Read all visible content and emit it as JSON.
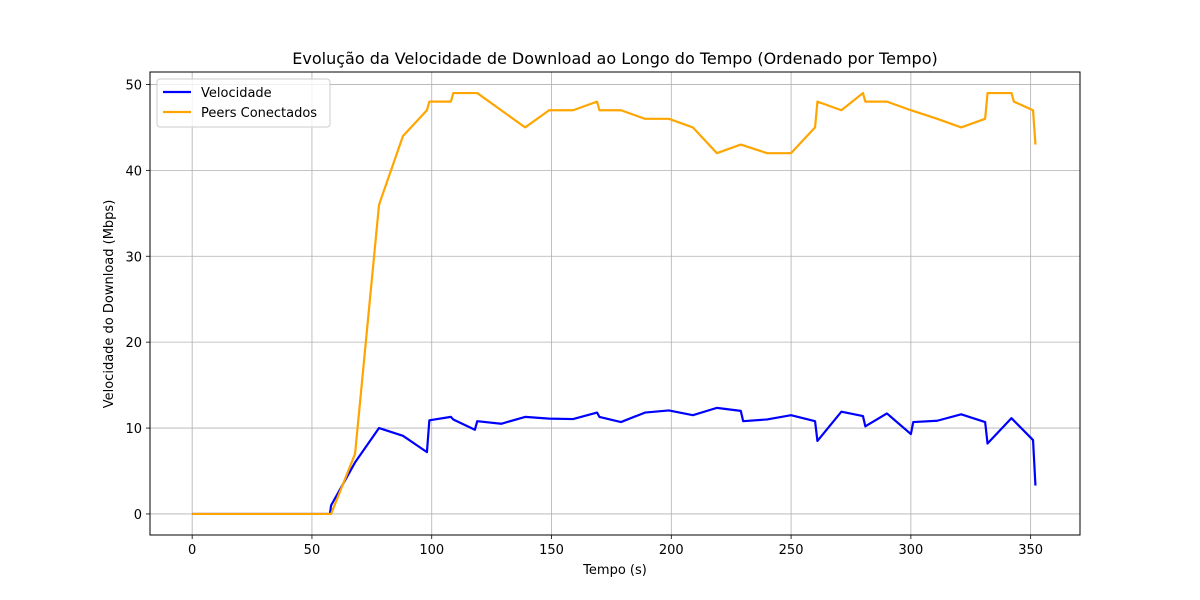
{
  "chart_data": {
    "type": "line",
    "title": "Evolução da Velocidade de Download ao Longo do Tempo (Ordenado por Tempo)",
    "xlabel": "Tempo (s)",
    "ylabel": "Velocidade do Download (Mbps)",
    "xlim": [
      -17.6,
      370.6
    ],
    "ylim": [
      -2.45,
      51.45
    ],
    "xticks": [
      0,
      50,
      100,
      150,
      200,
      250,
      300,
      350
    ],
    "yticks": [
      0,
      10,
      20,
      30,
      40,
      50
    ],
    "grid": true,
    "legend_position": "top-left",
    "series": [
      {
        "name": "Velocidade",
        "color": "#0000ff",
        "points": [
          [
            0,
            0
          ],
          [
            57.5,
            0
          ],
          [
            58,
            1.0
          ],
          [
            68,
            6.0
          ],
          [
            78,
            10.0
          ],
          [
            88,
            9.1
          ],
          [
            98,
            7.2
          ],
          [
            99,
            10.9
          ],
          [
            108,
            11.3
          ],
          [
            109,
            11.0
          ],
          [
            118,
            9.8
          ],
          [
            119,
            10.8
          ],
          [
            129,
            10.5
          ],
          [
            139,
            11.3
          ],
          [
            149,
            11.1
          ],
          [
            159,
            11.05
          ],
          [
            169,
            11.8
          ],
          [
            170,
            11.3
          ],
          [
            179,
            10.7
          ],
          [
            189,
            11.8
          ],
          [
            199,
            12.05
          ],
          [
            209,
            11.5
          ],
          [
            219,
            12.35
          ],
          [
            229,
            12.0
          ],
          [
            230,
            10.8
          ],
          [
            240,
            11.0
          ],
          [
            250,
            11.5
          ],
          [
            260,
            10.8
          ],
          [
            261,
            8.5
          ],
          [
            271,
            11.9
          ],
          [
            280,
            11.4
          ],
          [
            281,
            10.2
          ],
          [
            290,
            11.7
          ],
          [
            300,
            9.3
          ],
          [
            301,
            10.7
          ],
          [
            311,
            10.85
          ],
          [
            321,
            11.6
          ],
          [
            331,
            10.7
          ],
          [
            332,
            8.2
          ],
          [
            342,
            11.15
          ],
          [
            351,
            8.6
          ],
          [
            352,
            3.3
          ]
        ]
      },
      {
        "name": "Peers Conectados",
        "color": "#ffa500",
        "points": [
          [
            0,
            0
          ],
          [
            58,
            0
          ],
          [
            68,
            7.0
          ],
          [
            78,
            36
          ],
          [
            88,
            44
          ],
          [
            98,
            47
          ],
          [
            99,
            48
          ],
          [
            108,
            48
          ],
          [
            109,
            49
          ],
          [
            119,
            49
          ],
          [
            129,
            47
          ],
          [
            139,
            45
          ],
          [
            149,
            47
          ],
          [
            159,
            47
          ],
          [
            169,
            48
          ],
          [
            170,
            47
          ],
          [
            179,
            47
          ],
          [
            189,
            46
          ],
          [
            199,
            46
          ],
          [
            209,
            45
          ],
          [
            219,
            42
          ],
          [
            229,
            43
          ],
          [
            240,
            42
          ],
          [
            250,
            42
          ],
          [
            260,
            45
          ],
          [
            261,
            48
          ],
          [
            271,
            47
          ],
          [
            280,
            49
          ],
          [
            281,
            48
          ],
          [
            290,
            48
          ],
          [
            300,
            47
          ],
          [
            311,
            46
          ],
          [
            321,
            45
          ],
          [
            331,
            46
          ],
          [
            332,
            49
          ],
          [
            342,
            49
          ],
          [
            343,
            48
          ],
          [
            351,
            47
          ],
          [
            352,
            43
          ]
        ]
      }
    ]
  }
}
